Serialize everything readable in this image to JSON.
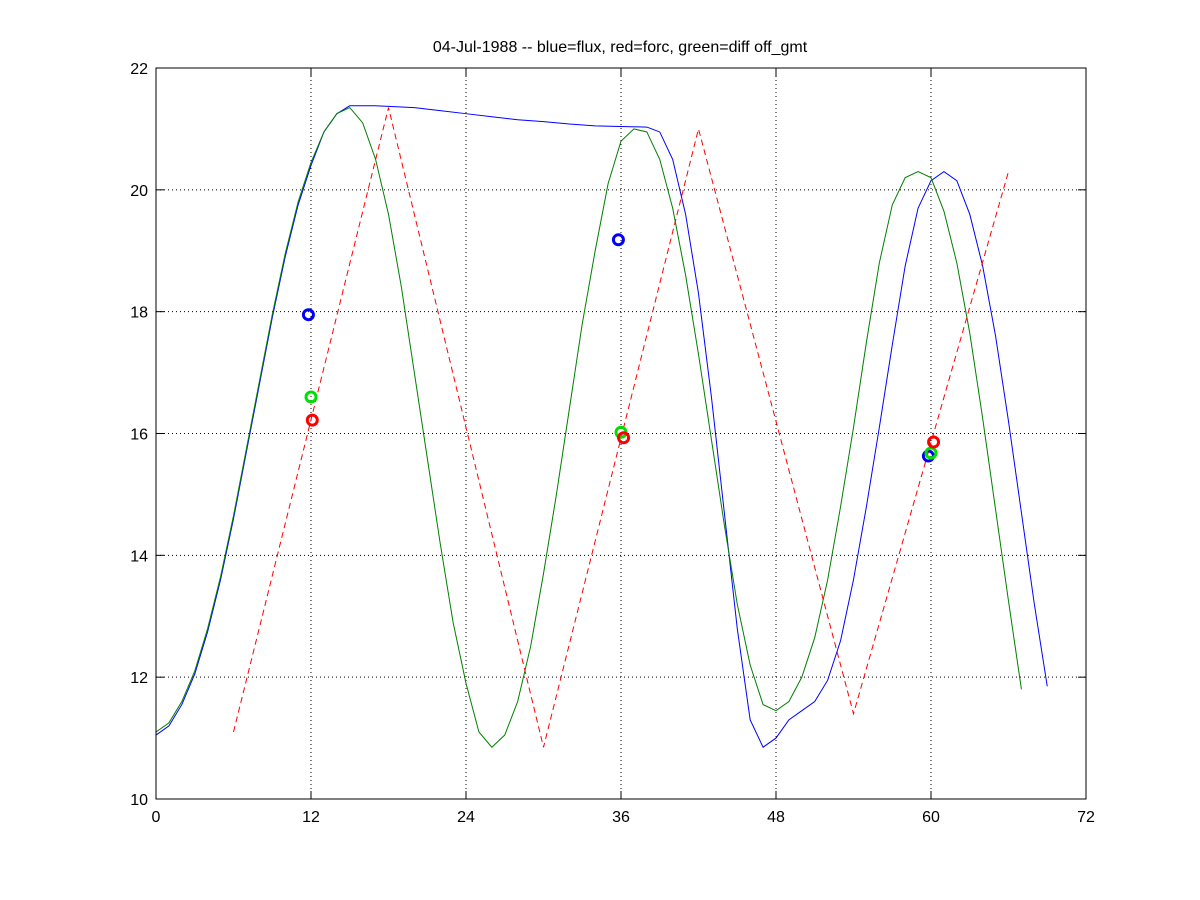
{
  "chart_data": {
    "type": "line",
    "title": "04-Jul-1988 -- blue=flux, red=forc, green=diff off_gmt",
    "xlim": [
      0,
      72
    ],
    "ylim": [
      10,
      22
    ],
    "x_ticks": [
      0,
      12,
      24,
      36,
      48,
      60,
      72
    ],
    "y_ticks": [
      10,
      12,
      14,
      16,
      18,
      20,
      22
    ],
    "grid": true,
    "series": [
      {
        "color": "#0000ff",
        "style": "solid",
        "points": [
          [
            0,
            11.05
          ],
          [
            1,
            11.2
          ],
          [
            2,
            11.55
          ],
          [
            3,
            12.05
          ],
          [
            4,
            12.75
          ],
          [
            5,
            13.6
          ],
          [
            6,
            14.6
          ],
          [
            7,
            15.7
          ],
          [
            8,
            16.8
          ],
          [
            9,
            17.9
          ],
          [
            10,
            18.9
          ],
          [
            11,
            19.75
          ],
          [
            12,
            20.4
          ],
          [
            13,
            20.95
          ],
          [
            14,
            21.25
          ],
          [
            15,
            21.38
          ],
          [
            16,
            21.38
          ],
          [
            17,
            21.38
          ],
          [
            18,
            21.37
          ],
          [
            20,
            21.35
          ],
          [
            22,
            21.3
          ],
          [
            24,
            21.25
          ],
          [
            26,
            21.2
          ],
          [
            28,
            21.15
          ],
          [
            30,
            21.12
          ],
          [
            32,
            21.08
          ],
          [
            34,
            21.05
          ],
          [
            36,
            21.04
          ],
          [
            38,
            21.03
          ],
          [
            39,
            20.95
          ],
          [
            40,
            20.5
          ],
          [
            41,
            19.6
          ],
          [
            42,
            18.3
          ],
          [
            43,
            16.6
          ],
          [
            44,
            14.7
          ],
          [
            45,
            12.8
          ],
          [
            46,
            11.3
          ],
          [
            47,
            10.85
          ],
          [
            48,
            11.0
          ],
          [
            49,
            11.3
          ],
          [
            50,
            11.45
          ],
          [
            51,
            11.6
          ],
          [
            52,
            11.95
          ],
          [
            53,
            12.6
          ],
          [
            54,
            13.6
          ],
          [
            55,
            14.8
          ],
          [
            56,
            16.1
          ],
          [
            57,
            17.45
          ],
          [
            58,
            18.75
          ],
          [
            59,
            19.7
          ],
          [
            60,
            20.15
          ],
          [
            61,
            20.3
          ],
          [
            62,
            20.15
          ],
          [
            63,
            19.6
          ],
          [
            64,
            18.75
          ],
          [
            65,
            17.6
          ],
          [
            66,
            16.2
          ],
          [
            67,
            14.7
          ],
          [
            68,
            13.2
          ],
          [
            69,
            11.85
          ]
        ]
      },
      {
        "color": "#007f00",
        "style": "solid",
        "points": [
          [
            0,
            11.1
          ],
          [
            1,
            11.25
          ],
          [
            2,
            11.6
          ],
          [
            3,
            12.1
          ],
          [
            4,
            12.8
          ],
          [
            5,
            13.65
          ],
          [
            6,
            14.65
          ],
          [
            7,
            15.75
          ],
          [
            8,
            16.85
          ],
          [
            9,
            17.95
          ],
          [
            10,
            18.95
          ],
          [
            11,
            19.8
          ],
          [
            12,
            20.45
          ],
          [
            13,
            20.95
          ],
          [
            14,
            21.25
          ],
          [
            15,
            21.35
          ],
          [
            16,
            21.1
          ],
          [
            17,
            20.5
          ],
          [
            18,
            19.6
          ],
          [
            19,
            18.4
          ],
          [
            20,
            17.0
          ],
          [
            21,
            15.6
          ],
          [
            22,
            14.2
          ],
          [
            23,
            12.9
          ],
          [
            24,
            11.9
          ],
          [
            25,
            11.1
          ],
          [
            26,
            10.85
          ],
          [
            27,
            11.05
          ],
          [
            28,
            11.6
          ],
          [
            29,
            12.5
          ],
          [
            30,
            13.7
          ],
          [
            31,
            15.0
          ],
          [
            32,
            16.4
          ],
          [
            33,
            17.8
          ],
          [
            34,
            19.0
          ],
          [
            35,
            20.1
          ],
          [
            36,
            20.8
          ],
          [
            37,
            21.0
          ],
          [
            38,
            20.95
          ],
          [
            39,
            20.5
          ],
          [
            40,
            19.7
          ],
          [
            41,
            18.6
          ],
          [
            42,
            17.3
          ],
          [
            43,
            15.9
          ],
          [
            44,
            14.5
          ],
          [
            45,
            13.2
          ],
          [
            46,
            12.2
          ],
          [
            47,
            11.55
          ],
          [
            48,
            11.45
          ],
          [
            49,
            11.6
          ],
          [
            50,
            12.0
          ],
          [
            51,
            12.65
          ],
          [
            52,
            13.6
          ],
          [
            53,
            14.8
          ],
          [
            54,
            16.1
          ],
          [
            55,
            17.5
          ],
          [
            56,
            18.8
          ],
          [
            57,
            19.75
          ],
          [
            58,
            20.2
          ],
          [
            59,
            20.3
          ],
          [
            60,
            20.2
          ],
          [
            61,
            19.65
          ],
          [
            62,
            18.8
          ],
          [
            63,
            17.65
          ],
          [
            64,
            16.25
          ],
          [
            65,
            14.75
          ],
          [
            66,
            13.25
          ],
          [
            67,
            11.8
          ]
        ]
      },
      {
        "color": "#ff0000",
        "style": "dashed",
        "points": [
          [
            6,
            11.1
          ],
          [
            18,
            21.35
          ],
          [
            30,
            10.85
          ],
          [
            42,
            21.0
          ],
          [
            54,
            11.4
          ],
          [
            66,
            20.3
          ]
        ]
      }
    ],
    "markers": [
      {
        "color": "#0000ff",
        "x": 11.8,
        "y": 17.95
      },
      {
        "color": "#00e000",
        "x": 12.0,
        "y": 16.6
      },
      {
        "color": "#ff0000",
        "x": 12.1,
        "y": 16.22
      },
      {
        "color": "#0000ff",
        "x": 35.8,
        "y": 19.18
      },
      {
        "color": "#00e000",
        "x": 36.0,
        "y": 16.02
      },
      {
        "color": "#ff0000",
        "x": 36.2,
        "y": 15.93
      },
      {
        "color": "#0000ff",
        "x": 59.8,
        "y": 15.63
      },
      {
        "color": "#00e000",
        "x": 60.0,
        "y": 15.68
      },
      {
        "color": "#ff0000",
        "x": 60.2,
        "y": 15.86
      }
    ]
  }
}
